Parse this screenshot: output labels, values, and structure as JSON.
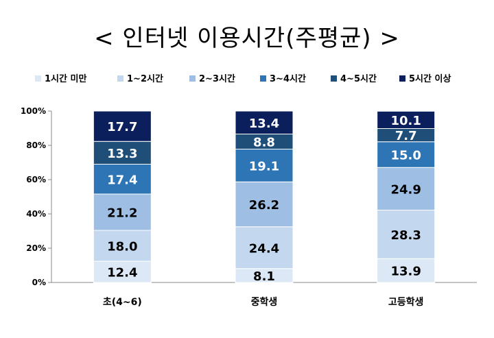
{
  "chart_data": {
    "type": "bar",
    "stacked": true,
    "title": "< 인터넷 이용시간(주평균) >",
    "categories": [
      "초(4~6)",
      "중학생",
      "고등학생"
    ],
    "series": [
      {
        "name": "1시간 미만",
        "color": "#dce8f5",
        "values": [
          12.4,
          8.1,
          13.9
        ]
      },
      {
        "name": "1~2시간",
        "color": "#c3d7ee",
        "values": [
          18.0,
          24.4,
          28.3
        ]
      },
      {
        "name": "2~3시간",
        "color": "#9ebfe3",
        "values": [
          21.2,
          26.2,
          24.9
        ]
      },
      {
        "name": "3~4시간",
        "color": "#2e75b6",
        "values": [
          17.4,
          19.1,
          15.0
        ]
      },
      {
        "name": "4~5시간",
        "color": "#1f4e79",
        "values": [
          13.3,
          8.8,
          7.7
        ]
      },
      {
        "name": "5시간 이상",
        "color": "#0a1f5c",
        "values": [
          17.7,
          13.4,
          10.1
        ]
      }
    ],
    "ylim": [
      0,
      100
    ],
    "yticks": [
      "0%",
      "20%",
      "40%",
      "60%",
      "80%",
      "100%"
    ],
    "grid": false,
    "legend": "top"
  }
}
